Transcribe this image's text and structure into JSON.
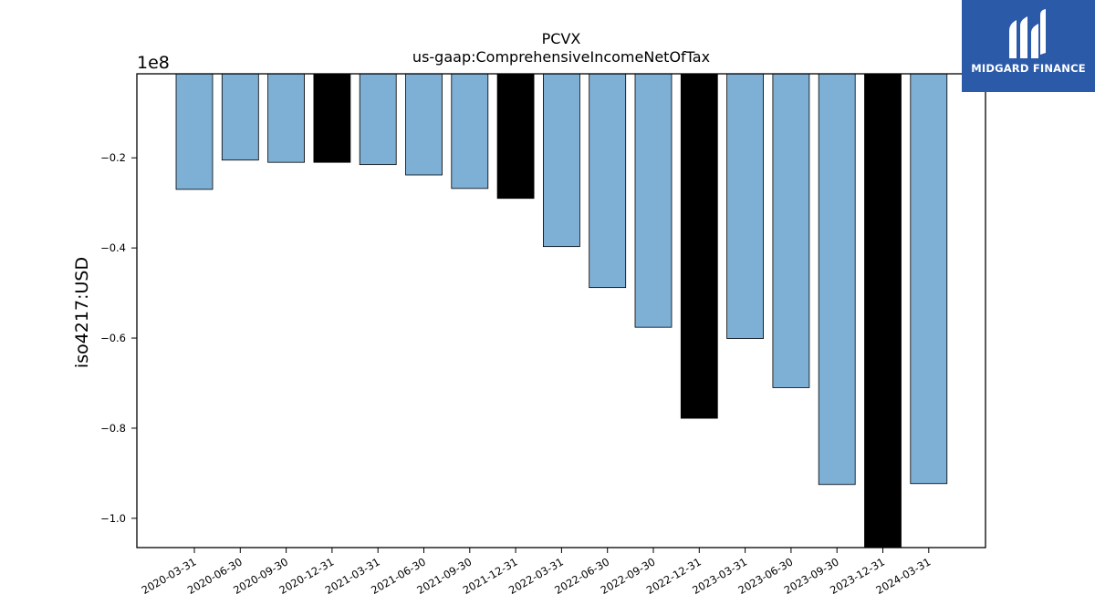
{
  "chart_data": {
    "type": "bar",
    "title": "PCVX",
    "subtitle": "us-gaap:ComprehensiveIncomeNetOfTax",
    "ylabel": "iso4217:USD",
    "xlabel": "",
    "offset_label": "1e8",
    "ylim": [
      -1.065,
      -0.0135
    ],
    "yticks": [
      -0.2,
      -0.4,
      -0.6,
      -0.8,
      -1.0
    ],
    "ytick_labels": [
      "−0.2",
      "−0.4",
      "−0.6",
      "−0.8",
      "−1.0"
    ],
    "categories": [
      "2020-03-31",
      "2020-06-30",
      "2020-09-30",
      "2020-12-31",
      "2021-03-31",
      "2021-06-30",
      "2021-09-30",
      "2021-12-31",
      "2022-03-31",
      "2022-06-30",
      "2022-09-30",
      "2022-12-31",
      "2023-03-31",
      "2023-06-30",
      "2023-09-30",
      "2023-12-31",
      "2024-03-31"
    ],
    "values": [
      -0.27,
      -0.205,
      -0.21,
      -0.21,
      -0.215,
      -0.238,
      -0.268,
      -0.29,
      -0.397,
      -0.488,
      -0.576,
      -0.778,
      -0.601,
      -0.71,
      -0.925,
      -1.065,
      -0.923
    ],
    "bar_colors": [
      "#7eb0d5",
      "#7eb0d5",
      "#7eb0d5",
      "#000000",
      "#7eb0d5",
      "#7eb0d5",
      "#7eb0d5",
      "#000000",
      "#7eb0d5",
      "#7eb0d5",
      "#7eb0d5",
      "#000000",
      "#7eb0d5",
      "#7eb0d5",
      "#7eb0d5",
      "#000000",
      "#7eb0d5"
    ],
    "grid": false,
    "legend": "none"
  },
  "logo": {
    "text": "MIDGARD FINANCE",
    "background": "#2b5aa9"
  }
}
